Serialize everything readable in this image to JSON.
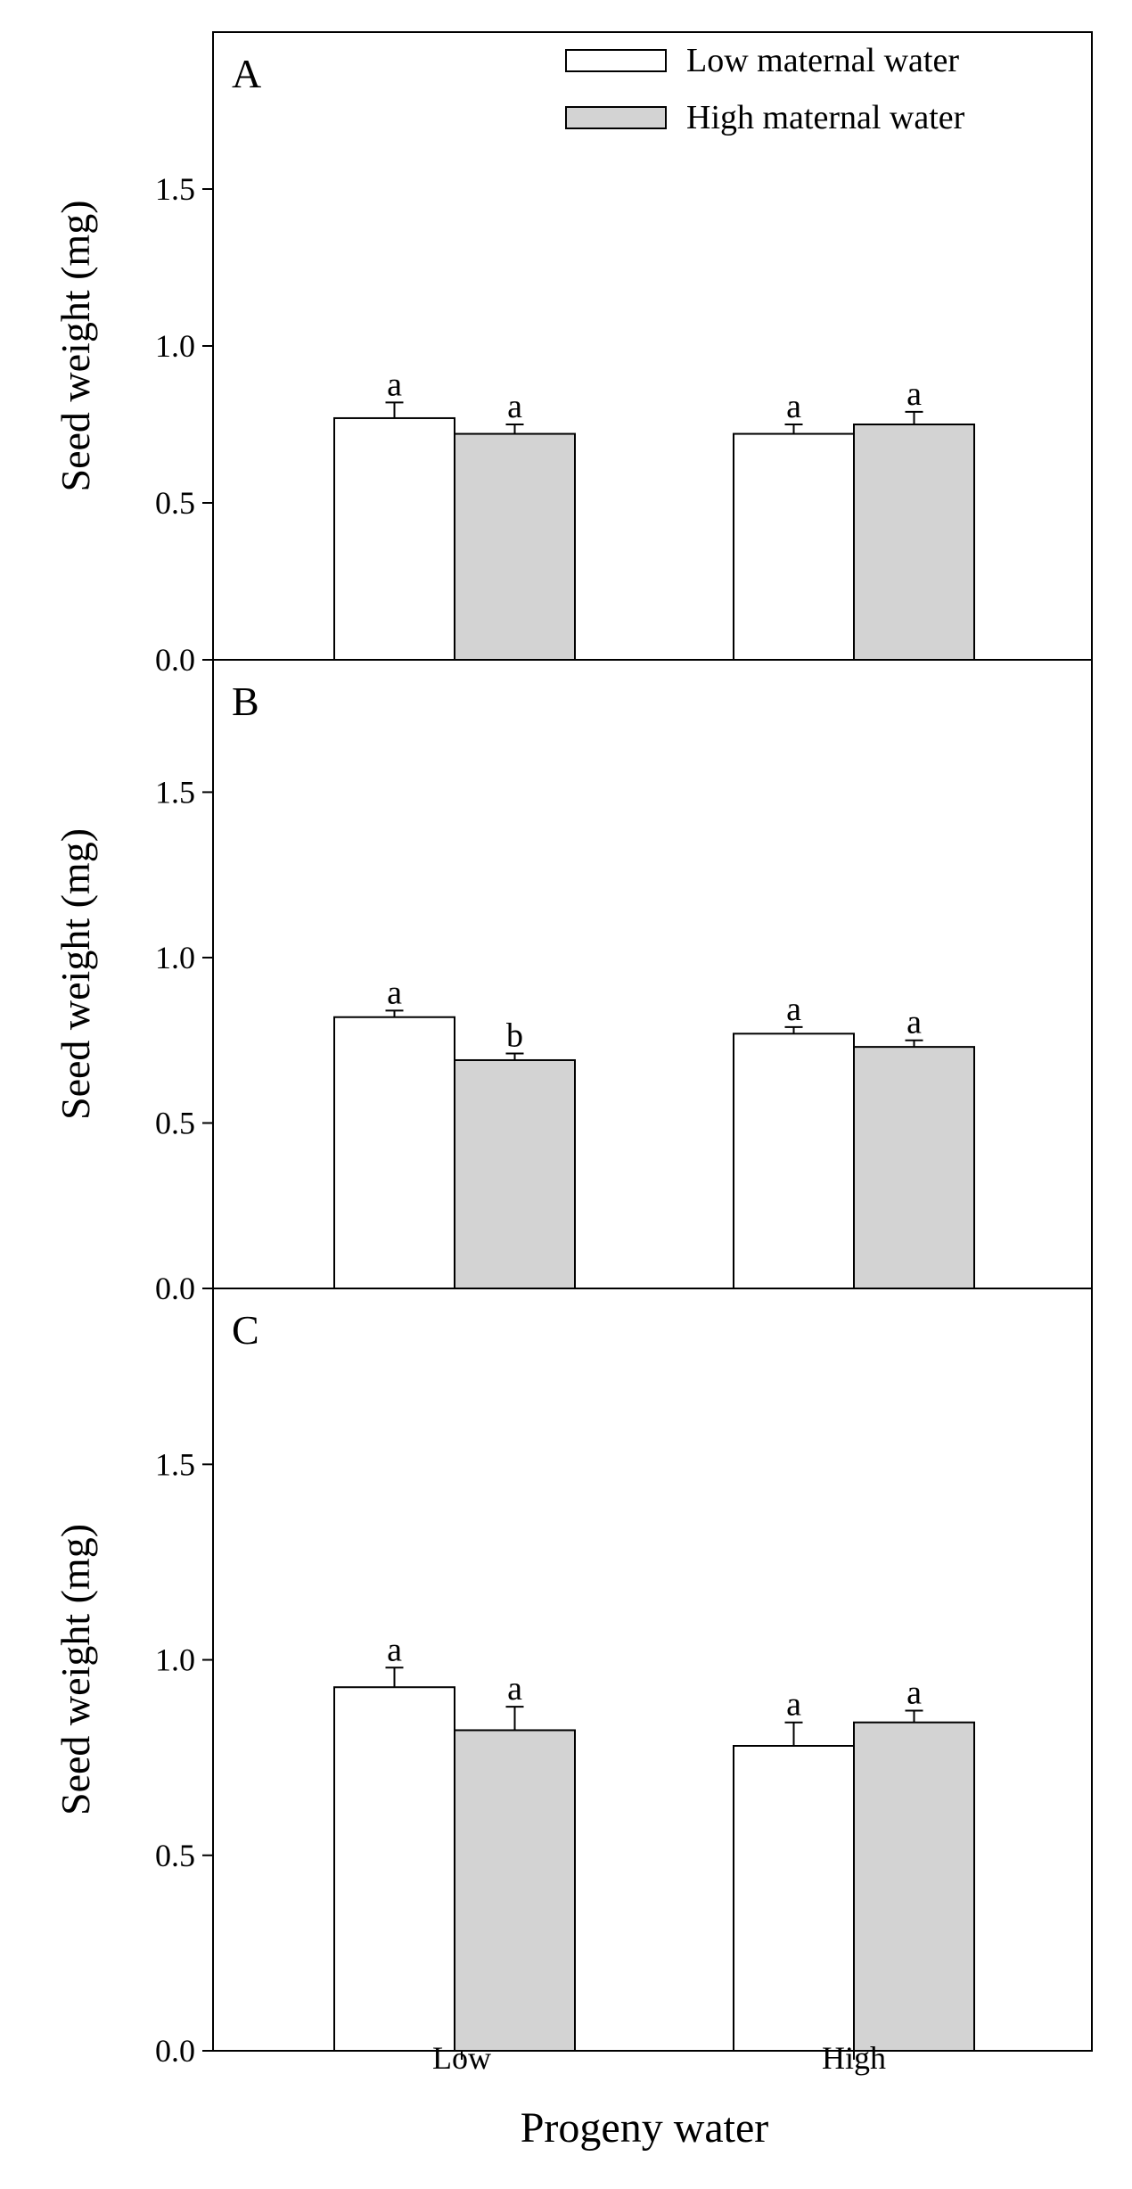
{
  "chart_data": [
    {
      "type": "bar",
      "panel_label": "A",
      "ylabel": "Seed weight (mg)",
      "ylim": [
        0,
        2.0
      ],
      "yticks": [
        "0.0",
        "0.5",
        "1.0",
        "1.5"
      ],
      "categories": [
        "Low",
        "High"
      ],
      "series": [
        {
          "name": "Low maternal water",
          "values": [
            0.77,
            0.72
          ],
          "errors": [
            0.05,
            0.03
          ],
          "letters": [
            "a",
            "a"
          ]
        },
        {
          "name": "High maternal water",
          "values": [
            0.72,
            0.75
          ],
          "errors": [
            0.03,
            0.04
          ],
          "letters": [
            "a",
            "a"
          ]
        }
      ]
    },
    {
      "type": "bar",
      "panel_label": "B",
      "ylabel": "Seed weight (mg)",
      "ylim": [
        0,
        1.9
      ],
      "yticks": [
        "0.0",
        "0.5",
        "1.0",
        "1.5"
      ],
      "categories": [
        "Low",
        "High"
      ],
      "series": [
        {
          "name": "Low maternal water",
          "values": [
            0.82,
            0.77
          ],
          "errors": [
            0.02,
            0.02
          ],
          "letters": [
            "a",
            "a"
          ]
        },
        {
          "name": "High maternal water",
          "values": [
            0.69,
            0.73
          ],
          "errors": [
            0.02,
            0.02
          ],
          "letters": [
            "b",
            "a"
          ]
        }
      ]
    },
    {
      "type": "bar",
      "panel_label": "C",
      "ylabel": "Seed weight (mg)",
      "ylim": [
        0,
        1.95
      ],
      "yticks": [
        "0.0",
        "0.5",
        "1.0",
        "1.5"
      ],
      "categories": [
        "Low",
        "High"
      ],
      "series": [
        {
          "name": "Low maternal water",
          "values": [
            0.93,
            0.78
          ],
          "errors": [
            0.05,
            0.06
          ],
          "letters": [
            "a",
            "a"
          ]
        },
        {
          "name": "High maternal water",
          "values": [
            0.82,
            0.84
          ],
          "errors": [
            0.06,
            0.03
          ],
          "letters": [
            "a",
            "a"
          ]
        }
      ]
    }
  ],
  "legend": {
    "entries": [
      "Low maternal water",
      "High maternal water"
    ],
    "colors": [
      "#ffffff",
      "#d3d3d3"
    ]
  },
  "xlabel": "Progeny water",
  "colors": {
    "low_maternal": "#ffffff",
    "high_maternal": "#d3d3d3",
    "axis": "#000000"
  }
}
